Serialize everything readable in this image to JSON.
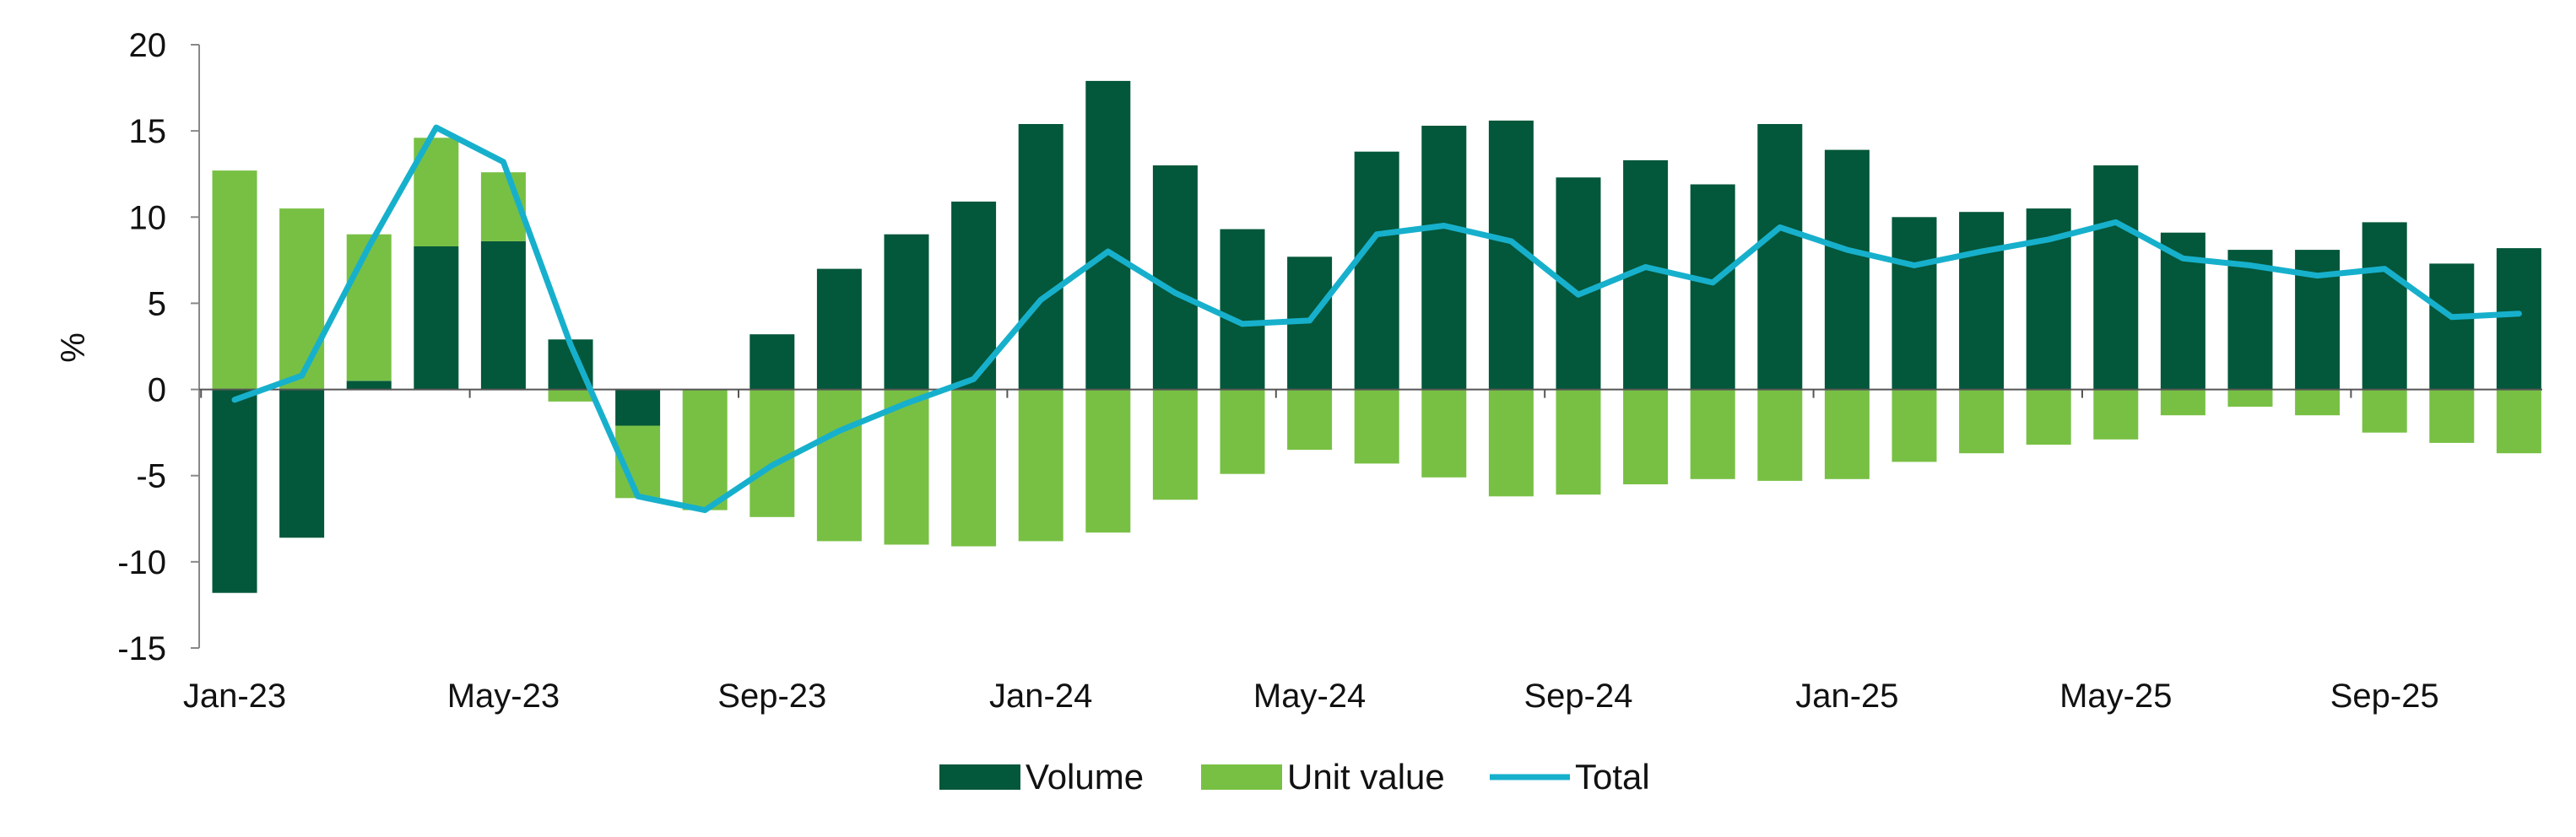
{
  "chart_data": {
    "type": "bar",
    "stacked": true,
    "ylabel": "%",
    "ylim": [
      -15,
      20
    ],
    "yticks": [
      20,
      15,
      10,
      5,
      0,
      -5,
      -10,
      -15
    ],
    "grid": false,
    "legend_position": "bottom",
    "x": [
      "Jan-23",
      "Feb-23",
      "Mar-23",
      "Apr-23",
      "May-23",
      "Jun-23",
      "Jul-23",
      "Aug-23",
      "Sep-23",
      "Oct-23",
      "Nov-23",
      "Dec-23",
      "Jan-24",
      "Feb-24",
      "Mar-24",
      "Apr-24",
      "May-24",
      "Jun-24",
      "Jul-24",
      "Aug-24",
      "Sep-24",
      "Oct-24",
      "Nov-24",
      "Dec-24",
      "Jan-25",
      "Feb-25",
      "Mar-25",
      "Apr-25",
      "May-25",
      "Jun-25",
      "Jul-25",
      "Aug-25",
      "Sep-25",
      "Oct-25",
      "Nov-25"
    ],
    "xtick_labels": [
      "Jan-23",
      "May-23",
      "Sep-23",
      "Jan-24",
      "May-24",
      "Sep-24",
      "Jan-25",
      "May-25",
      "Sep-25"
    ],
    "series": [
      {
        "name": "Volume",
        "kind": "bar",
        "color": "#03573a",
        "values": [
          -11.8,
          -8.6,
          0.5,
          8.3,
          8.6,
          2.9,
          -2.1,
          0.0,
          3.2,
          7.0,
          9.0,
          10.9,
          15.4,
          17.9,
          13.0,
          9.3,
          7.7,
          13.8,
          15.3,
          15.6,
          12.3,
          13.3,
          11.9,
          15.4,
          13.9,
          10.0,
          10.3,
          10.5,
          13.0,
          9.1,
          8.1,
          8.1,
          9.7,
          7.3,
          8.2
        ]
      },
      {
        "name": "Unit value",
        "kind": "bar",
        "color": "#78c044",
        "values": [
          12.7,
          10.5,
          8.5,
          6.3,
          4.0,
          -0.7,
          -4.2,
          -7.0,
          -7.4,
          -8.8,
          -9.0,
          -9.1,
          -8.8,
          -8.3,
          -6.4,
          -4.9,
          -3.5,
          -4.3,
          -5.1,
          -6.2,
          -6.1,
          -5.5,
          -5.2,
          -5.3,
          -5.2,
          -4.2,
          -3.7,
          -3.2,
          -2.9,
          -1.5,
          -1.0,
          -1.5,
          -2.5,
          -3.1,
          -3.7
        ]
      },
      {
        "name": "Total",
        "kind": "line",
        "color": "#17b0cc",
        "values": [
          -0.6,
          0.8,
          8.3,
          15.2,
          13.2,
          2.6,
          -6.2,
          -7.0,
          -4.4,
          -2.4,
          -0.8,
          0.6,
          5.2,
          8.0,
          5.6,
          3.8,
          4.0,
          9.0,
          9.5,
          8.6,
          5.5,
          7.1,
          6.2,
          9.4,
          8.1,
          7.2,
          8.0,
          8.7,
          9.7,
          7.6,
          7.2,
          6.6,
          7.0,
          4.2,
          4.4
        ]
      }
    ]
  }
}
